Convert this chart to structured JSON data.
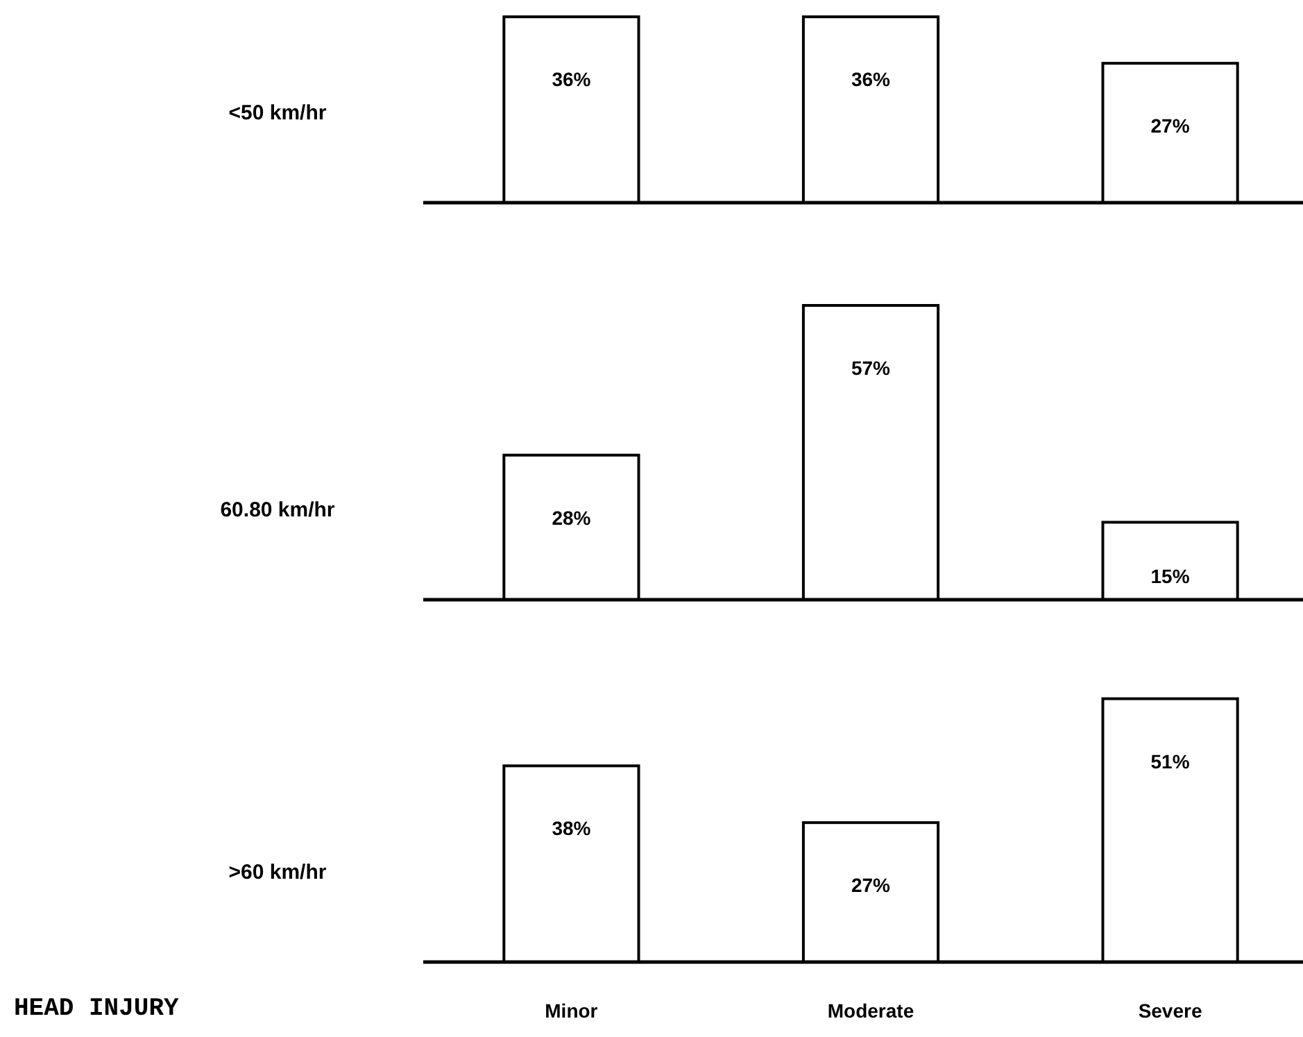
{
  "chart_data": [
    {
      "type": "bar",
      "ylabel": "<50 km/hr",
      "categories": [
        null,
        null,
        null
      ],
      "values": [
        36,
        36,
        27
      ],
      "value_labels": [
        "36%",
        "36%",
        "27%"
      ],
      "color": "#ffffff",
      "tick_labels": false
    },
    {
      "type": "bar",
      "ylabel": "60.80 km/hr",
      "categories": [
        null,
        null,
        null
      ],
      "values": [
        28,
        57,
        15
      ],
      "value_labels": [
        "28%",
        "57%",
        "15%"
      ],
      "color": "#ffffff",
      "tick_labels": false
    },
    {
      "type": "bar",
      "ylabel": ">60 km/hr",
      "annotations": [
        "HEAD INJURY"
      ],
      "categories": [
        "Minor",
        "Moderate",
        "Severe"
      ],
      "values": [
        38,
        27,
        51
      ],
      "value_labels": [
        "38%",
        "27%",
        "51%"
      ],
      "color": "#ffffff",
      "tick_labels": "x"
    }
  ]
}
